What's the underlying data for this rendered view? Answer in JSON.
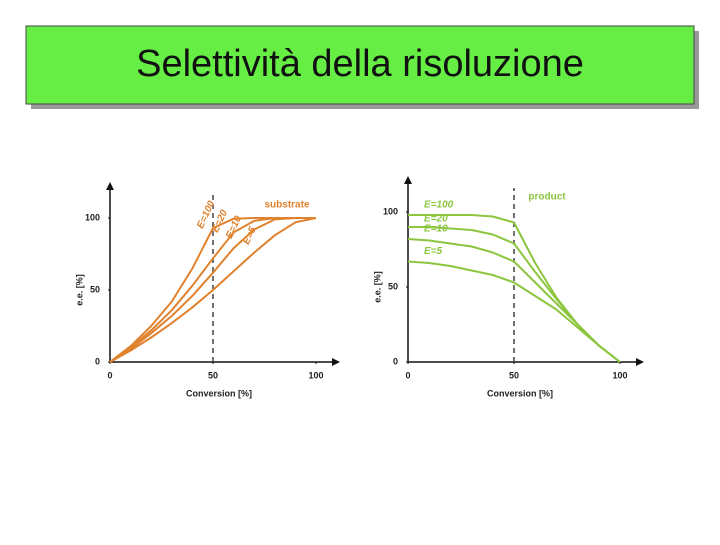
{
  "slide_title": "Selettività della risoluzione",
  "chart_data": [
    {
      "type": "line",
      "x": [
        0,
        10,
        20,
        30,
        40,
        50,
        60,
        70,
        80,
        90,
        100
      ],
      "series": [
        {
          "name": "E=100",
          "color": "#e0822e",
          "values": [
            0,
            11,
            25,
            42,
            65,
            93,
            99.5,
            100,
            100,
            100,
            100
          ]
        },
        {
          "name": "E=20",
          "color": "#e0822e",
          "values": [
            0,
            10,
            22,
            36,
            53,
            72,
            90,
            98,
            100,
            100,
            100
          ]
        },
        {
          "name": "E=10",
          "color": "#e0822e",
          "values": [
            0,
            9,
            20,
            32,
            46,
            62,
            79,
            92,
            99,
            100,
            100
          ]
        },
        {
          "name": "E=5",
          "color": "#e0822e",
          "values": [
            0,
            8,
            17,
            27,
            38,
            50,
            63,
            76,
            88,
            97,
            100
          ]
        }
      ],
      "xlim": [
        0,
        100
      ],
      "ylim": [
        0,
        100
      ],
      "xticks": [
        0,
        50,
        100
      ],
      "yticks": [
        0,
        50,
        100
      ],
      "x_label": "Conversion [%]",
      "y_label": "e.e. [%]",
      "annotation": "substrate",
      "marker_x": 50
    },
    {
      "type": "line",
      "x": [
        0,
        10,
        20,
        30,
        40,
        50,
        60,
        70,
        80,
        90,
        100
      ],
      "series": [
        {
          "name": "E=100",
          "color": "#8cc63f",
          "values": [
            98,
            98,
            98,
            98,
            97,
            93,
            66,
            43,
            25,
            11,
            0
          ]
        },
        {
          "name": "E=20",
          "color": "#8cc63f",
          "values": [
            90,
            90,
            89,
            88,
            85,
            79,
            60,
            42,
            25,
            11,
            0
          ]
        },
        {
          "name": "E=10",
          "color": "#8cc63f",
          "values": [
            82,
            81,
            79,
            77,
            73,
            67,
            53,
            39,
            25,
            11,
            0
          ]
        },
        {
          "name": "E=5",
          "color": "#8cc63f",
          "values": [
            67,
            66,
            64,
            61,
            58,
            53,
            44,
            35,
            23,
            11,
            0
          ]
        }
      ],
      "xlim": [
        0,
        100
      ],
      "ylim": [
        0,
        100
      ],
      "xticks": [
        0,
        50,
        100
      ],
      "yticks": [
        0,
        50,
        100
      ],
      "x_label": "Conversion [%]",
      "y_label": "e.e. [%]",
      "annotation": "product",
      "marker_x": 50
    }
  ]
}
